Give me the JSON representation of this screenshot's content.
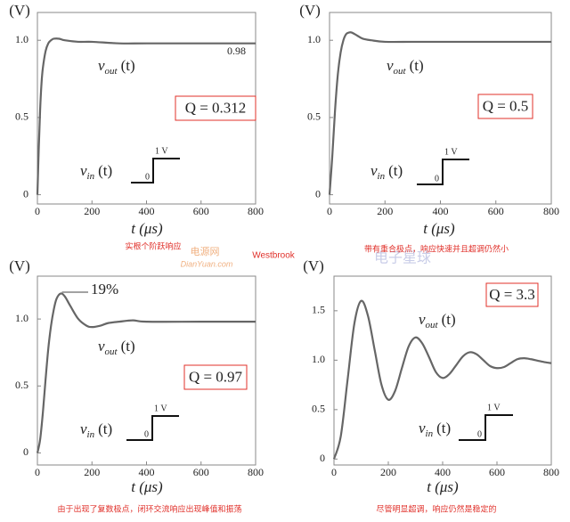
{
  "chart_data": [
    {
      "type": "line",
      "ylabel": "(V)",
      "xlabel": "t (μs)",
      "color": "#666666",
      "x": [
        0,
        5,
        10,
        15,
        20,
        30,
        40,
        50,
        60,
        80,
        100,
        150,
        200,
        300,
        400,
        600,
        800
      ],
      "values": [
        0,
        0.3,
        0.55,
        0.72,
        0.82,
        0.93,
        0.98,
        1.0,
        1.01,
        1.01,
        1.0,
        0.99,
        0.99,
        0.98,
        0.98,
        0.98,
        0.98
      ],
      "xlim": [
        0,
        800
      ],
      "ylim": [
        -0.06,
        1.18
      ],
      "xticks": [
        0,
        200,
        400,
        600,
        800
      ],
      "yticks": [
        0,
        0.5,
        {
          "value": 1,
          "label": "1.0"
        }
      ],
      "output_label": {
        "symbol": "v",
        "subscript": "out",
        "argument": "(t)"
      },
      "input_label": {
        "symbol": "v",
        "subscript": "in",
        "argument": "(t)"
      },
      "q_label": "Q = 0.312",
      "step_labels": [
        "1 V",
        "0"
      ],
      "annotation": "0.98",
      "caption": "实根个阶跃响应"
    },
    {
      "type": "line",
      "ylabel": "(V)",
      "xlabel": "t (μs)",
      "color": "#666666",
      "x": [
        0,
        10,
        20,
        30,
        40,
        50,
        60,
        70,
        80,
        100,
        120,
        150,
        200,
        300,
        400,
        600,
        800
      ],
      "values": [
        0,
        0.25,
        0.55,
        0.78,
        0.92,
        1.0,
        1.04,
        1.05,
        1.05,
        1.03,
        1.01,
        1.0,
        0.99,
        0.99,
        0.99,
        0.99,
        0.99
      ],
      "xlim": [
        0,
        800
      ],
      "ylim": [
        -0.06,
        1.18
      ],
      "xticks": [
        0,
        200,
        400,
        600,
        800
      ],
      "yticks": [
        0,
        0.5,
        {
          "value": 1,
          "label": "1.0"
        }
      ],
      "output_label": {
        "symbol": "v",
        "subscript": "out",
        "argument": "(t)"
      },
      "input_label": {
        "symbol": "v",
        "subscript": "in",
        "argument": "(t)"
      },
      "q_label": "Q = 0.5",
      "step_labels": [
        "1 V",
        "0"
      ],
      "caption": "带有重合极点，响应快速并且超调仍然小"
    },
    {
      "type": "line",
      "ylabel": "(V)",
      "xlabel": "t (μs)",
      "color": "#666666",
      "x": [
        0,
        10,
        20,
        30,
        40,
        50,
        60,
        70,
        85,
        100,
        120,
        150,
        180,
        200,
        230,
        260,
        300,
        350,
        400,
        600,
        800
      ],
      "values": [
        0,
        0.1,
        0.3,
        0.55,
        0.78,
        0.95,
        1.07,
        1.15,
        1.19,
        1.17,
        1.1,
        1.0,
        0.95,
        0.94,
        0.95,
        0.97,
        0.98,
        0.99,
        0.98,
        0.98,
        0.98
      ],
      "xlim": [
        0,
        800
      ],
      "ylim": [
        -0.09,
        1.32
      ],
      "xticks": [
        0,
        200,
        400,
        600,
        800
      ],
      "yticks": [
        0,
        0.5,
        {
          "value": 1,
          "label": "1.0"
        }
      ],
      "output_label": {
        "symbol": "v",
        "subscript": "out",
        "argument": "(t)"
      },
      "input_label": {
        "symbol": "v",
        "subscript": "in",
        "argument": "(t)"
      },
      "q_label": "Q = 0.97",
      "step_labels": [
        "1 V",
        "0"
      ],
      "annotation": "19%",
      "caption": "由于出现了复数极点，闭环交流响应出现峰值和振荡"
    },
    {
      "type": "line",
      "ylabel": "(V)",
      "xlabel": "t (μs)",
      "color": "#666666",
      "x": [
        0,
        25,
        50,
        75,
        100,
        125,
        150,
        175,
        200,
        225,
        250,
        275,
        300,
        325,
        350,
        375,
        400,
        425,
        450,
        475,
        500,
        525,
        550,
        575,
        600,
        625,
        650,
        675,
        700,
        725,
        750,
        775,
        800
      ],
      "values": [
        0,
        0.23,
        0.8,
        1.37,
        1.6,
        1.45,
        1.1,
        0.75,
        0.6,
        0.69,
        0.92,
        1.14,
        1.23,
        1.17,
        1.03,
        0.88,
        0.82,
        0.86,
        0.95,
        1.04,
        1.08,
        1.06,
        1.0,
        0.94,
        0.92,
        0.93,
        0.97,
        1.01,
        1.02,
        1.01,
        0.995,
        0.98,
        0.97
      ],
      "xlim": [
        0,
        800
      ],
      "ylim": [
        -0.06,
        1.85
      ],
      "xticks": [
        0,
        200,
        400,
        600,
        800
      ],
      "yticks": [
        0,
        0.5,
        {
          "value": 1,
          "label": "1.0"
        },
        1.5
      ],
      "output_label": {
        "symbol": "v",
        "subscript": "out",
        "argument": "(t)"
      },
      "input_label": {
        "symbol": "v",
        "subscript": "in",
        "argument": "(t)"
      },
      "q_label": "Q = 3.3",
      "step_labels": [
        "1 V",
        "0"
      ],
      "caption": "尽管明显超调，响应仍然是稳定的"
    }
  ],
  "watermarks": [
    "Westbrook",
    "电源网",
    "DianYuan.com",
    "电子星球"
  ]
}
